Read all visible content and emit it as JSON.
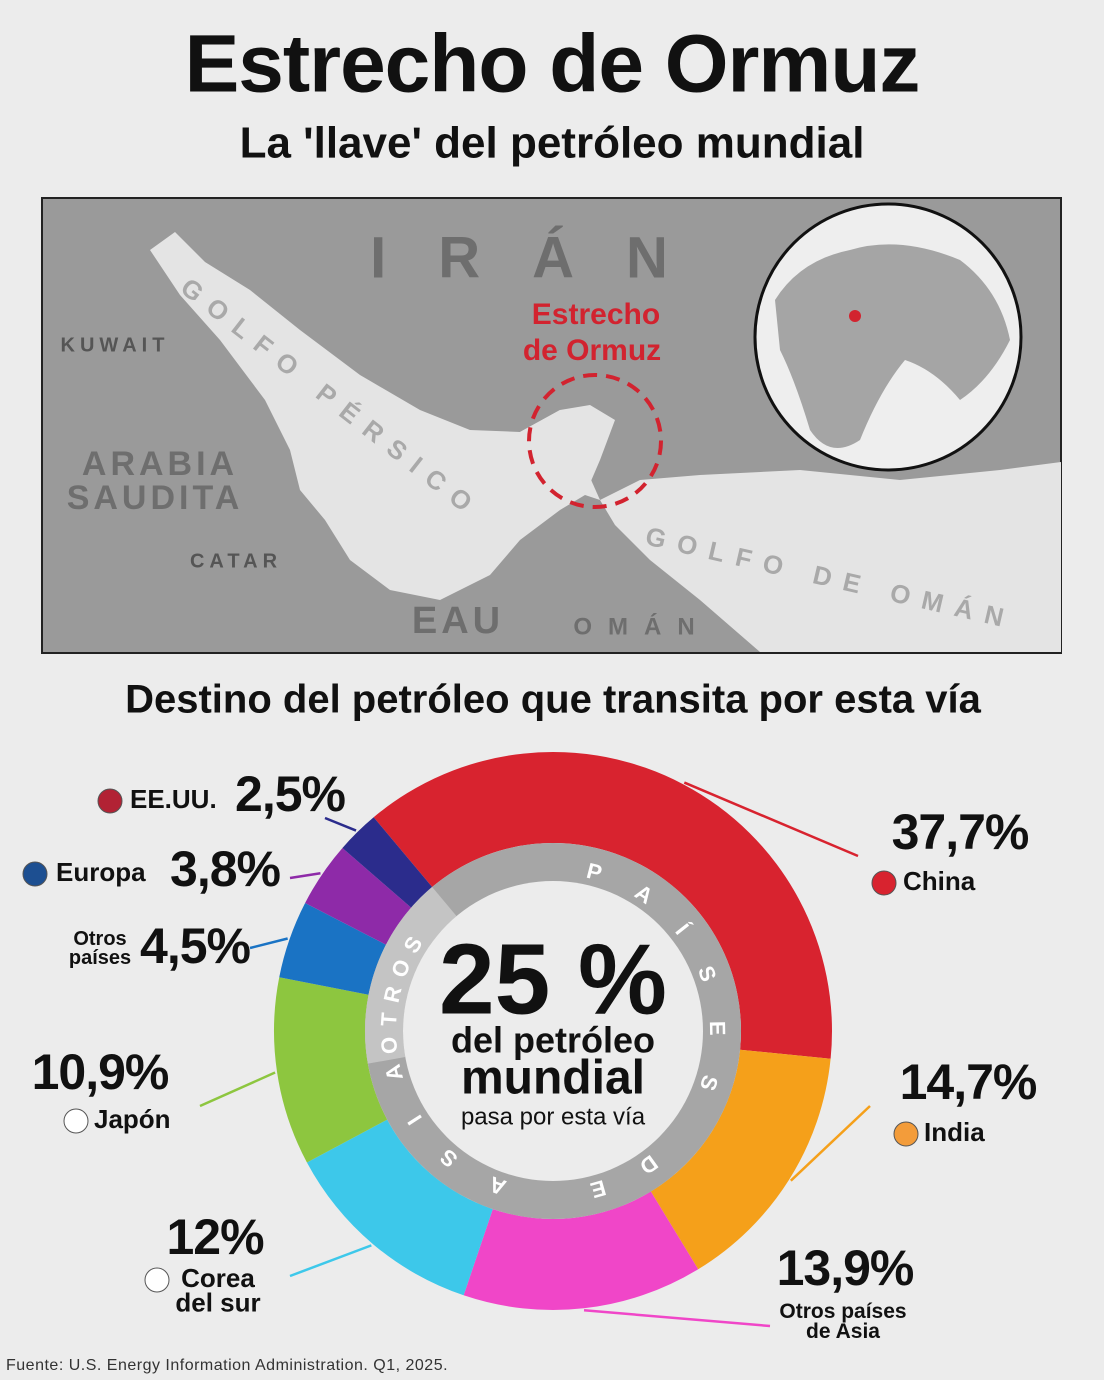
{
  "title": "Estrecho de Ormuz",
  "subtitle": "La 'llave' del petróleo mundial",
  "map": {
    "country_labels": [
      "IRÁN",
      "KUWAIT",
      "ARABIA",
      "SAUDITA",
      "CATAR",
      "EAU",
      "OMÁN"
    ],
    "water_labels": [
      "GOLFO PÉRSICO",
      "GOLFO DE OMÁN"
    ],
    "highlight_label": [
      "Estrecho",
      "de Ormuz"
    ]
  },
  "chart_data": {
    "type": "donut",
    "title": "Destino del petróleo que transita por esta vía",
    "categories": [
      "China",
      "India",
      "Otros países de Asia",
      "Corea del sur",
      "Japón",
      "Otros países",
      "Europa",
      "EE.UU."
    ],
    "values": [
      37.7,
      14.7,
      13.9,
      12,
      10.9,
      4.5,
      3.8,
      2.5
    ],
    "value_labels": [
      "37,7%",
      "14,7%",
      "13,9%",
      "12%",
      "10,9%",
      "4,5%",
      "3,8%",
      "2,5%"
    ],
    "colors": [
      "#d8232f",
      "#f5a01a",
      "#f046c8",
      "#3dc8ea",
      "#8dc63f",
      "#1a73c4",
      "#8e2aa8",
      "#2b2c8c"
    ],
    "ring_labels": [
      "OTROS",
      "PAÍSES DE ASIA"
    ],
    "center_value": "25 %",
    "center_lines": [
      "del petróleo",
      "mundial",
      "pasa por esta vía"
    ]
  },
  "source": "Fuente: U.S. Energy Information Administration. Q1, 2025."
}
